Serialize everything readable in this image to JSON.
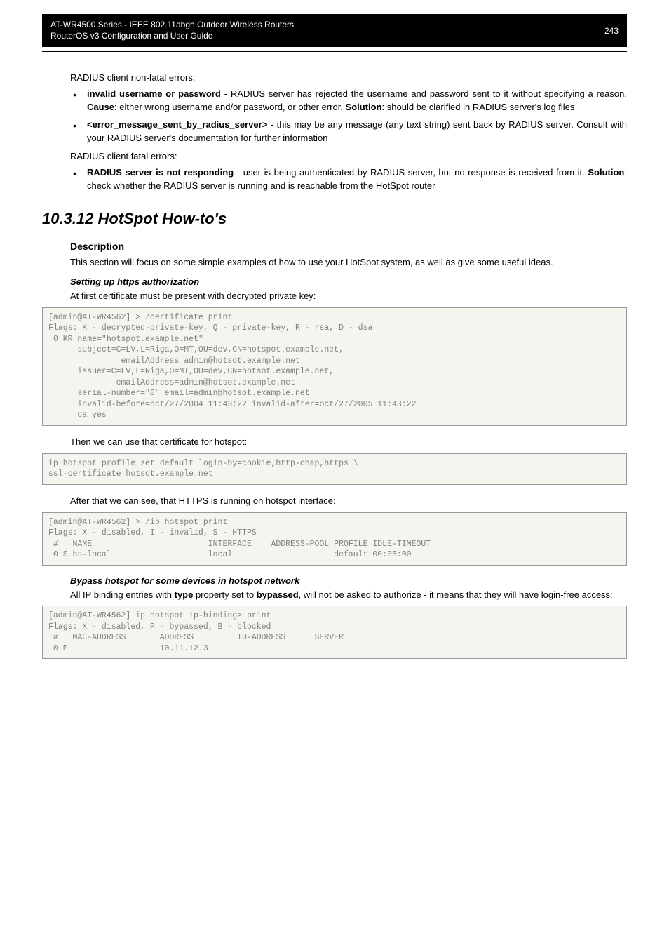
{
  "header": {
    "line1": "AT-WR4500 Series - IEEE 802.11abgh Outdoor Wireless Routers",
    "line2": "RouterOS v3 Configuration and User Guide",
    "page_number": "243"
  },
  "nonfatal_intro": "RADIUS client non-fatal errors:",
  "nonfatal_items": {
    "item1_bold": "invalid username or password",
    "item1_rest1": " - RADIUS server has rejected the username and password sent to it without specifying a reason. ",
    "item1_cause": "Cause",
    "item1_rest2": ": either wrong username and/or password, or other error. ",
    "item1_solution": "Solution",
    "item1_rest3": ": should be clarified in RADIUS server's log files",
    "item2_bold": "<error_message_sent_by_radius_server>",
    "item2_rest": " - this may be any message (any text string) sent back by RADIUS server. Consult with your RADIUS server's documentation for further information"
  },
  "fatal_intro": "RADIUS client fatal errors:",
  "fatal_items": {
    "item1_bold": "RADIUS server is not responding",
    "item1_rest1": " - user is being authenticated by RADIUS server, but no response is received from it. ",
    "item1_solution": "Solution",
    "item1_rest2": ": check whether the RADIUS server is running and is reachable from the HotSpot router"
  },
  "section_title": "10.3.12  HotSpot How-to's",
  "description_heading": "Description",
  "description_text": "This section will focus on some simple examples of how to use your HotSpot system, as well as give some useful ideas.",
  "https_heading": "Setting up https authorization",
  "https_intro": "At first certificate must be present with decrypted private key:",
  "code1": "[admin@AT-WR4562] > /certificate print\nFlags: K - decrypted-private-key, Q - private-key, R - rsa, D - dsa\n 0 KR name=\"hotspot.example.net\"\n      subject=C=LV,L=Riga,O=MT,OU=dev,CN=hotspot.example.net,\n               emailAddress=admin@hotsot.example.net\n      issuer=C=LV,L=Riga,O=MT,OU=dev,CN=hotsot.example.net,\n              emailAddress=admin@hotsot.example.net\n      serial-number=\"0\" email=admin@hotsot.example.net\n      invalid-before=oct/27/2004 11:43:22 invalid-after=oct/27/2005 11:43:22\n      ca=yes",
  "then_text": "Then we can use that certificate for hotspot:",
  "code2": "ip hotspot profile set default login-by=cookie,http-chap,https \\\nssl-certificate=hotsot.example.net",
  "after_text": "After that we can see, that HTTPS is running on hotspot interface:",
  "code3": "[admin@AT-WR4562] > /ip hotspot print\nFlags: X - disabled, I - invalid, S - HTTPS\n #   NAME                        INTERFACE    ADDRESS-POOL PROFILE IDLE-TIMEOUT\n 0 S hs-local                    local                     default 00:05:00",
  "bypass_heading": "Bypass hotspot for some devices in hotspot network",
  "bypass_text1": "All IP binding entries with ",
  "bypass_bold1": "type",
  "bypass_text2": " property set to ",
  "bypass_bold2": "bypassed",
  "bypass_text3": ", will not be asked to authorize - it means that they will have login-free access:",
  "code4": "[admin@AT-WR4562] ip hotspot ip-binding> print\nFlags: X - disabled, P - bypassed, B - blocked\n #   MAC-ADDRESS       ADDRESS         TO-ADDRESS      SERVER\n 0 P                   10.11.12.3"
}
